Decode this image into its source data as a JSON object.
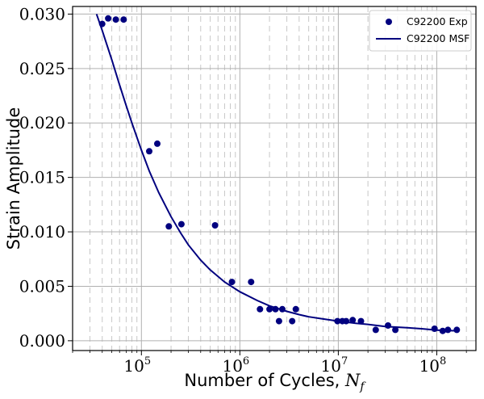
{
  "chart_data": {
    "type": "scatter",
    "title": "",
    "xlabel": "Number of Cycles, ",
    "xlabel_math": "N",
    "xlabel_math_sub": "f",
    "ylabel": "Strain Amplitude",
    "x_scale": "log",
    "xlim": [
      20000,
      250000000
    ],
    "ylim": [
      -0.0009,
      0.0307
    ],
    "y_ticks": [
      "0.000",
      "0.005",
      "0.010",
      "0.015",
      "0.020",
      "0.025",
      "0.030"
    ],
    "x_ticks": [
      {
        "base": "10",
        "exp": "5"
      },
      {
        "base": "10",
        "exp": "6"
      },
      {
        "base": "10",
        "exp": "7"
      },
      {
        "base": "10",
        "exp": "8"
      }
    ],
    "grid": true,
    "legend_position": "top-right",
    "series": [
      {
        "name": "C92200 Exp",
        "kind": "points",
        "color": "#00007f",
        "points": [
          [
            40000,
            0.0291
          ],
          [
            46000,
            0.0296
          ],
          [
            55000,
            0.0295
          ],
          [
            66000,
            0.0295
          ],
          [
            120000,
            0.0174
          ],
          [
            145000,
            0.0181
          ],
          [
            190000,
            0.0105
          ],
          [
            255000,
            0.0107
          ],
          [
            560000,
            0.0106
          ],
          [
            830000,
            0.0054
          ],
          [
            1300000,
            0.0054
          ],
          [
            1600000,
            0.0029
          ],
          [
            2000000,
            0.0029
          ],
          [
            2300000,
            0.0029
          ],
          [
            2500000,
            0.0018
          ],
          [
            2700000,
            0.0029
          ],
          [
            3400000,
            0.0018
          ],
          [
            3700000,
            0.0029
          ],
          [
            9800000,
            0.0018
          ],
          [
            11000000,
            0.0018
          ],
          [
            12000000,
            0.0018
          ],
          [
            14000000,
            0.0019
          ],
          [
            17000000,
            0.0018
          ],
          [
            24000000,
            0.001
          ],
          [
            32000000,
            0.0014
          ],
          [
            38000000,
            0.001
          ],
          [
            95000000,
            0.0011
          ],
          [
            115000000,
            0.0009
          ],
          [
            130000000,
            0.001
          ],
          [
            160000000,
            0.001
          ]
        ]
      },
      {
        "name": "C92200 MSF",
        "kind": "line",
        "color": "#00007f",
        "points": [
          [
            35000,
            0.03
          ],
          [
            40000,
            0.0285
          ],
          [
            50000,
            0.0258
          ],
          [
            60000,
            0.0235
          ],
          [
            70000,
            0.0216
          ],
          [
            80000,
            0.02
          ],
          [
            100000,
            0.0175
          ],
          [
            120000,
            0.0156
          ],
          [
            150000,
            0.0136
          ],
          [
            200000,
            0.0114
          ],
          [
            250000,
            0.0099
          ],
          [
            300000,
            0.0088
          ],
          [
            400000,
            0.0074
          ],
          [
            500000,
            0.0065
          ],
          [
            700000,
            0.0054
          ],
          [
            1000000,
            0.0045
          ],
          [
            1500000,
            0.0037
          ],
          [
            2000000,
            0.0032
          ],
          [
            3000000,
            0.0027
          ],
          [
            4000000,
            0.0024
          ],
          [
            5000000,
            0.0022
          ],
          [
            7000000,
            0.002
          ],
          [
            10000000,
            0.0018
          ],
          [
            15000000,
            0.0016
          ],
          [
            20000000,
            0.0015
          ],
          [
            30000000,
            0.0013
          ],
          [
            50000000,
            0.0012
          ],
          [
            70000000,
            0.0011
          ],
          [
            100000000,
            0.00098
          ],
          [
            150000000,
            0.00092
          ]
        ]
      }
    ]
  }
}
